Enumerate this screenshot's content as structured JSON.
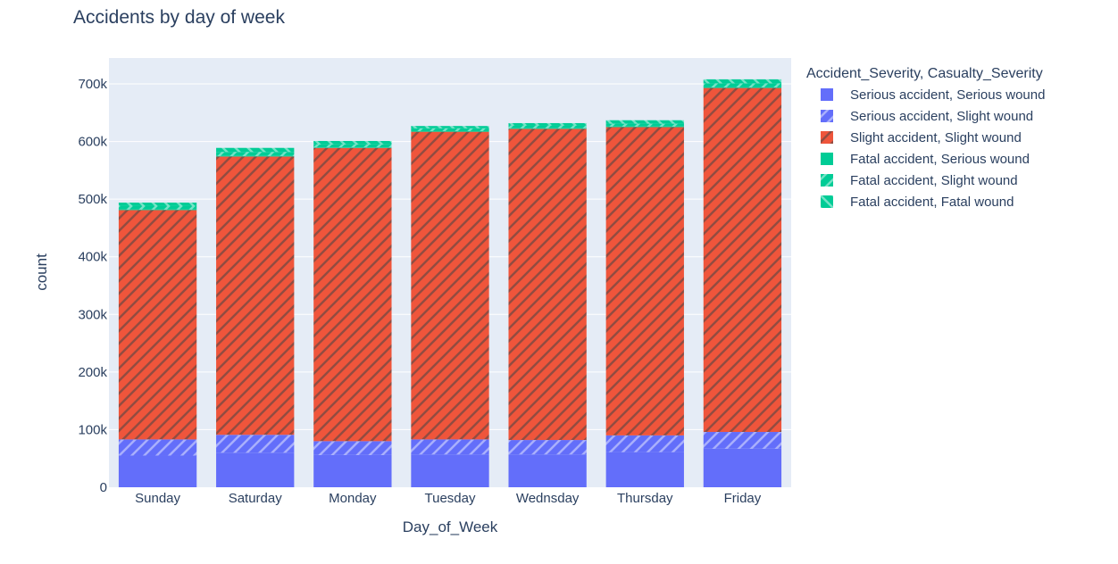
{
  "chart_data": {
    "type": "bar",
    "barmode": "stack",
    "title": "Accidents by day of week",
    "xlabel": "Day_of_Week",
    "ylabel": "count",
    "ylim": [
      0,
      745000
    ],
    "yticks": [
      0,
      100000,
      200000,
      300000,
      400000,
      500000,
      600000,
      700000
    ],
    "ytick_labels": [
      "0",
      "100k",
      "200k",
      "300k",
      "400k",
      "500k",
      "600k",
      "700k"
    ],
    "grid": true,
    "legend_title": "Accident_Severity, Casualty_Severity",
    "legend_position": "right",
    "categories": [
      "Sunday",
      "Saturday",
      "Monday",
      "Tuesday",
      "Wednsday",
      "Thursday",
      "Friday"
    ],
    "series": [
      {
        "name": "Serious accident, Serious wound",
        "color": "#636efa",
        "pattern": "none",
        "values": [
          55000,
          60000,
          56000,
          57000,
          57000,
          61000,
          67000
        ]
      },
      {
        "name": "Serious accident, Slight wound",
        "color": "#636efa",
        "pattern": "slash",
        "values": [
          28000,
          31000,
          24000,
          26000,
          25000,
          29000,
          29000
        ]
      },
      {
        "name": "Slight accident, Slight wound",
        "color": "#ef553b",
        "pattern": "slash",
        "values": [
          398000,
          483000,
          509000,
          534000,
          540000,
          535000,
          597000
        ]
      },
      {
        "name": "Fatal accident, Serious wound",
        "color": "#00cc96",
        "pattern": "none",
        "values": [
          1000,
          1000,
          1000,
          1000,
          1000,
          1000,
          1000
        ]
      },
      {
        "name": "Fatal accident, Slight wound",
        "color": "#00cc96",
        "pattern": "slash",
        "values": [
          6000,
          7000,
          5000,
          5000,
          5000,
          5000,
          7000
        ]
      },
      {
        "name": "Fatal accident, Fatal wound",
        "color": "#00cc96",
        "pattern": "backslash",
        "values": [
          6000,
          7000,
          6000,
          4000,
          4000,
          6000,
          7000
        ]
      }
    ]
  }
}
